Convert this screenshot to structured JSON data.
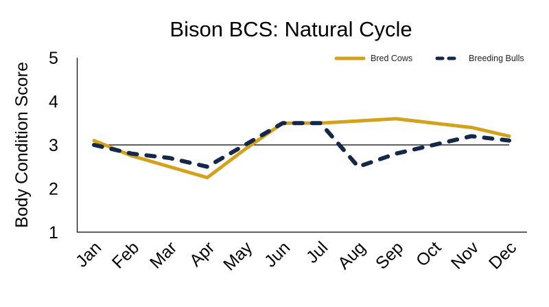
{
  "chart_data": {
    "type": "line",
    "title": "Bison BCS: Natural Cycle",
    "xlabel": "",
    "ylabel": "Body Condition Score",
    "categories": [
      "Jan",
      "Feb",
      "Mar",
      "Apr",
      "May",
      "Jun",
      "Jul",
      "Aug",
      "Sep",
      "Oct",
      "Nov",
      "Dec"
    ],
    "series": [
      {
        "name": "Bred Cows",
        "color": "#D4A21A",
        "style": "solid",
        "values": [
          3.1,
          2.75,
          2.5,
          2.25,
          2.9,
          3.5,
          3.5,
          3.55,
          3.6,
          3.5,
          3.4,
          3.2
        ]
      },
      {
        "name": "Breeding Bulls",
        "color": "#14284A",
        "style": "dashed",
        "values": [
          3.0,
          2.8,
          2.7,
          2.5,
          3.0,
          3.5,
          3.5,
          2.5,
          2.8,
          3.0,
          3.2,
          3.1
        ]
      }
    ],
    "reference_line": {
      "y": 3,
      "color": "#000000"
    },
    "ylim": [
      1,
      5
    ],
    "yticks": [
      1,
      2,
      3,
      4,
      5
    ],
    "grid": false,
    "legend_position": "top-right"
  }
}
